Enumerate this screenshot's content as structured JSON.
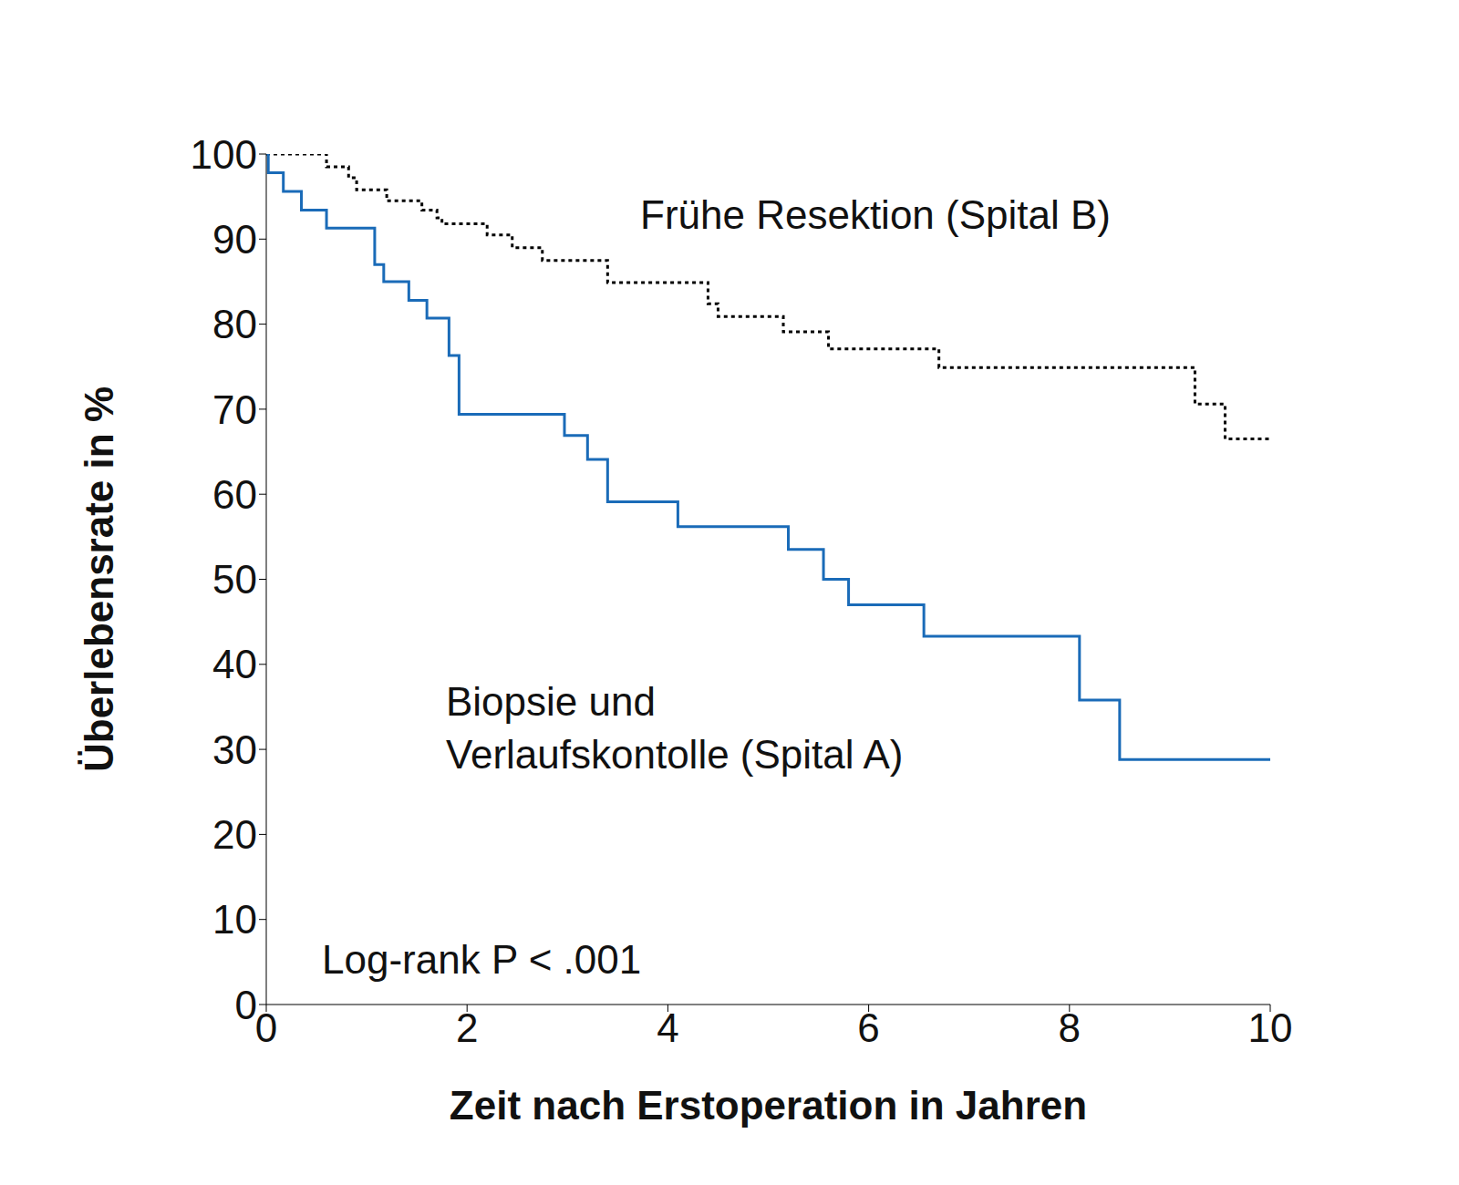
{
  "chart_data": {
    "type": "step",
    "title": null,
    "xlabel": "Zeit nach Erstoperation in Jahren",
    "ylabel": "Überlebensrate in %",
    "xlim": [
      0,
      10
    ],
    "xticks": [
      0,
      2,
      4,
      6,
      8,
      10
    ],
    "ylim": [
      0,
      100
    ],
    "yticks": [
      0,
      10,
      20,
      30,
      40,
      50,
      60,
      70,
      80,
      90,
      100
    ],
    "grid": false,
    "annotations": [
      "Log-rank P < .001"
    ],
    "series": [
      {
        "name": "Frühe Resektion (Spital B)",
        "color": "#000000",
        "line_style": "dotted",
        "x": [
          0,
          0.6,
          0.82,
          0.9,
          1.2,
          1.55,
          1.7,
          1.75,
          2.2,
          2.45,
          2.75,
          3.4,
          4.4,
          4.5,
          5.15,
          5.6,
          6.7,
          9.25,
          9.55,
          10
        ],
        "values": [
          100,
          98.5,
          97.2,
          95.8,
          94.5,
          93.4,
          92.5,
          91.8,
          90.5,
          89,
          87.5,
          84.9,
          82.4,
          80.9,
          79.1,
          77.1,
          74.9,
          70.6,
          66.5,
          66.5
        ]
      },
      {
        "name": "Biopsie und Verlaufskontolle (Spital A)",
        "color": "#1a6bb8",
        "line_style": "solid",
        "x": [
          0,
          0.02,
          0.17,
          0.35,
          0.6,
          1.08,
          1.17,
          1.42,
          1.6,
          1.82,
          1.92,
          2.97,
          3.2,
          3.4,
          4.1,
          5.2,
          5.55,
          5.8,
          6.55,
          8.1,
          8.5,
          10
        ],
        "values": [
          100,
          97.8,
          95.6,
          93.4,
          91.3,
          87,
          85,
          82.8,
          80.7,
          76.3,
          69.4,
          66.9,
          64.1,
          59.1,
          56.2,
          53.5,
          50,
          47,
          43.3,
          35.8,
          28.8,
          28.8
        ]
      }
    ]
  }
}
